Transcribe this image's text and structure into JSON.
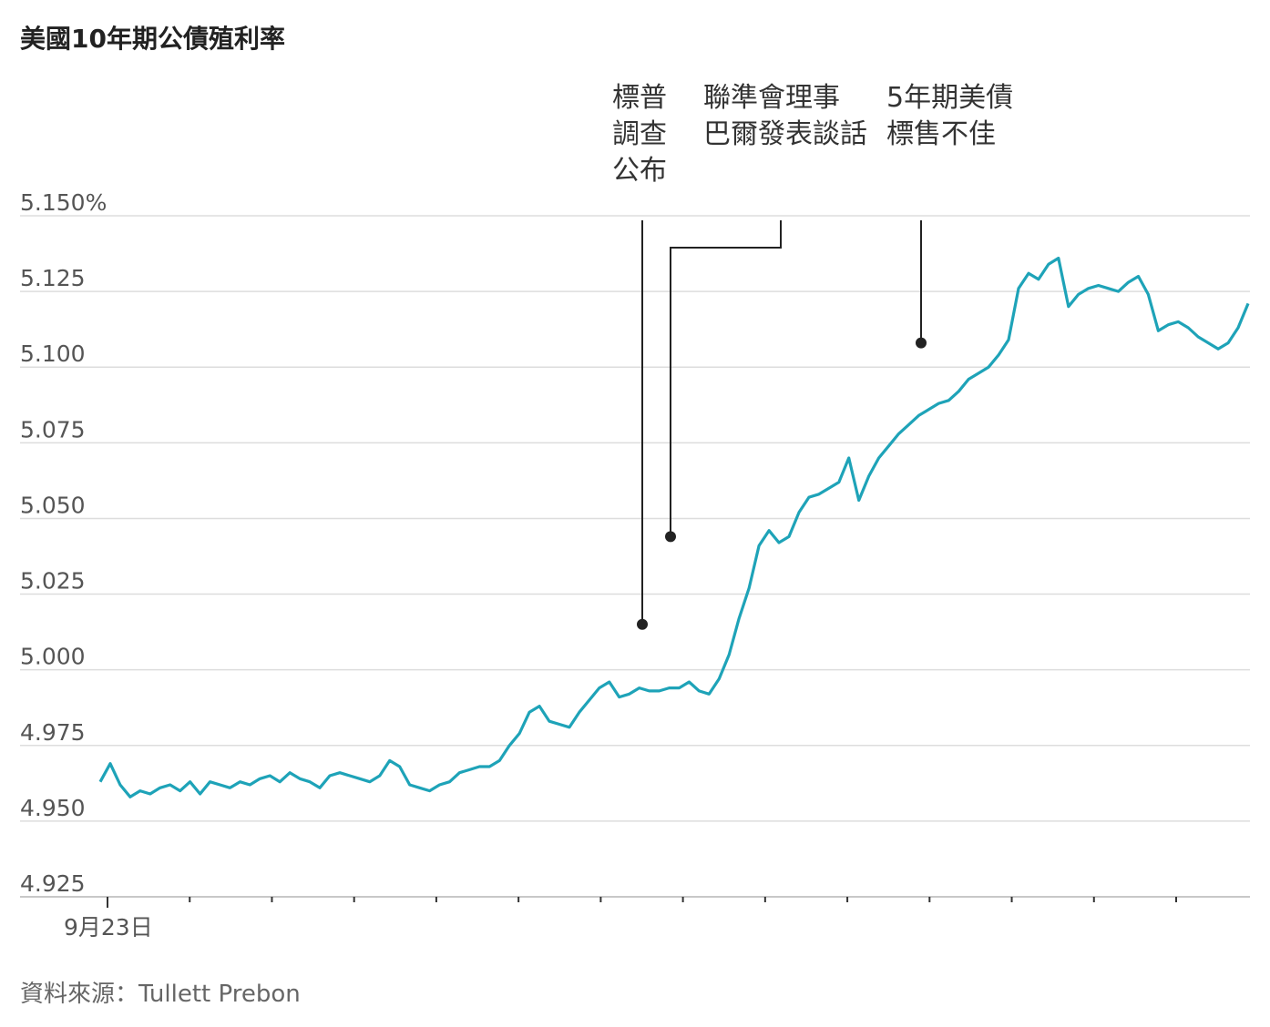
{
  "chart_data": {
    "type": "line",
    "title": "美國10年期公債殖利率",
    "source": "資料來源：Tullett Prebon",
    "ylim": [
      4.925,
      5.15
    ],
    "y_ticks": [
      "5.150%",
      "5.125",
      "5.100",
      "5.075",
      "5.050",
      "5.025",
      "5.000",
      "4.975",
      "4.950",
      "4.925"
    ],
    "y_tick_values": [
      5.15,
      5.125,
      5.1,
      5.075,
      5.05,
      5.025,
      5.0,
      4.975,
      4.95,
      4.925
    ],
    "x_tick_label": "9月23日",
    "x_tick_count": 14,
    "grid": true,
    "colors": {
      "line": "#1ea3b8",
      "grid": "#dddddd",
      "annotation": "#222222"
    },
    "series": [
      {
        "values": [
          4.963,
          4.969,
          4.962,
          4.958,
          4.96,
          4.959,
          4.961,
          4.962,
          4.96,
          4.963,
          4.959,
          4.963,
          4.962,
          4.961,
          4.963,
          4.962,
          4.964,
          4.965,
          4.963,
          4.966,
          4.964,
          4.963,
          4.961,
          4.965,
          4.966,
          4.965,
          4.964,
          4.963,
          4.965,
          4.97,
          4.968,
          4.962,
          4.961,
          4.96,
          4.962,
          4.963,
          4.966,
          4.967,
          4.968,
          4.968,
          4.97,
          4.975,
          4.979,
          4.986,
          4.988,
          4.983,
          4.982,
          4.981,
          4.986,
          4.99,
          4.994,
          4.996,
          4.991,
          4.992,
          4.994,
          4.993,
          4.993,
          4.994,
          4.994,
          4.996,
          4.993,
          4.992,
          4.997,
          5.005,
          5.017,
          5.027,
          5.041,
          5.046,
          5.042,
          5.044,
          5.052,
          5.057,
          5.058,
          5.06,
          5.062,
          5.07,
          5.056,
          5.064,
          5.07,
          5.074,
          5.078,
          5.081,
          5.084,
          5.086,
          5.088,
          5.089,
          5.092,
          5.096,
          5.098,
          5.1,
          5.104,
          5.109,
          5.126,
          5.131,
          5.129,
          5.134,
          5.136,
          5.12,
          5.124,
          5.126,
          5.127,
          5.126,
          5.125,
          5.128,
          5.13,
          5.124,
          5.112,
          5.114,
          5.115,
          5.113,
          5.11,
          5.108,
          5.106,
          5.108,
          5.113,
          5.121
        ]
      }
    ],
    "annotations": [
      {
        "lines": [
          "標普",
          "調查",
          "公布"
        ],
        "y": 5.015
      },
      {
        "lines": [
          "聯準會理事",
          "巴爾發表談話"
        ],
        "y": 5.044
      },
      {
        "lines": [
          "5年期美債",
          "標售不佳"
        ],
        "y": 5.108
      }
    ]
  }
}
